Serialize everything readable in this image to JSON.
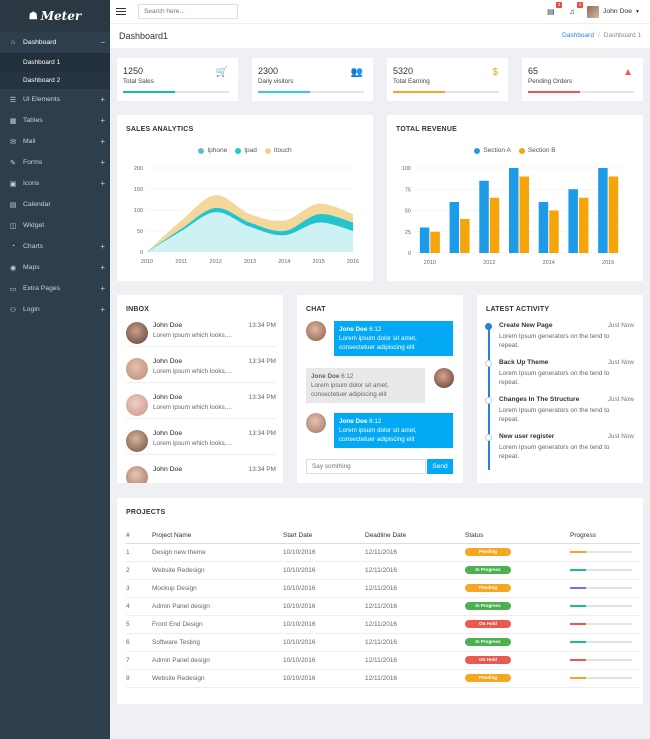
{
  "brand": {
    "name": "Meter",
    "icon": "paw-icon"
  },
  "sidebar": {
    "items": [
      {
        "label": "Dashboard",
        "icon": "home-icon",
        "toggle": "−",
        "sub": [
          "Dashboard 1",
          "Dashboard 2"
        ]
      },
      {
        "label": "UI Elements",
        "icon": "layers-icon",
        "toggle": "+"
      },
      {
        "label": "Tables",
        "icon": "table-icon",
        "toggle": "+"
      },
      {
        "label": "Mail",
        "icon": "mail-icon",
        "toggle": "+"
      },
      {
        "label": "Forms",
        "icon": "edit-icon",
        "toggle": "+"
      },
      {
        "label": "Icons",
        "icon": "grid-icon",
        "toggle": "+"
      },
      {
        "label": "Calendar",
        "icon": "calendar-icon",
        "toggle": ""
      },
      {
        "label": "Widget",
        "icon": "widget-icon",
        "toggle": ""
      },
      {
        "label": "Charts",
        "icon": "pie-chart-icon",
        "toggle": "+"
      },
      {
        "label": "Maps",
        "icon": "map-pin-icon",
        "toggle": "+"
      },
      {
        "label": "Extra Pages",
        "icon": "folder-icon",
        "toggle": "+"
      },
      {
        "label": "Login",
        "icon": "user-icon",
        "toggle": "+"
      }
    ]
  },
  "topbar": {
    "search_placeholder": "Search here...",
    "messages_count": "3",
    "alerts_count": "4",
    "user_name": "John Doe"
  },
  "header": {
    "title": "Dashboard1",
    "crumb_home": "Dashboard",
    "crumb_current": "Dashboard 1"
  },
  "stats": [
    {
      "value": "1250",
      "label": "Total Sales",
      "icon": "cart-icon",
      "color": "#1abc9c",
      "progress": 0.49
    },
    {
      "value": "2300",
      "label": "Daily visitors",
      "icon": "users-icon",
      "color": "#3bc9e7",
      "progress": 0.49
    },
    {
      "value": "5320",
      "label": "Total Earning",
      "icon": "dollar-icon",
      "color": "#f5a623",
      "progress": 0.49
    },
    {
      "value": "65",
      "label": "Pending Orders",
      "icon": "bag-icon",
      "color": "#e85a4f",
      "progress": 0.49
    }
  ],
  "sales": {
    "title": "SALES ANALYTICS",
    "legend": [
      {
        "name": "Iphone",
        "color": "#6ab8d9"
      },
      {
        "name": "Ipad",
        "color": "#1fc8d6"
      },
      {
        "name": "Itouch",
        "color": "#f5d08a"
      }
    ]
  },
  "revenue": {
    "title": "TOTAL REVENUE",
    "legend": [
      {
        "name": "Section A",
        "color": "#1e9be8"
      },
      {
        "name": "Section B",
        "color": "#f5a40a"
      }
    ]
  },
  "chart_data": [
    {
      "type": "area",
      "x": [
        2010,
        2011,
        2012,
        2013,
        2014,
        2015,
        2016
      ],
      "ylim": [
        0,
        200
      ],
      "yticks": [
        0,
        50,
        100,
        150,
        200
      ],
      "xticks": [
        "2010",
        "2011",
        "2012",
        "2013",
        "2014",
        "2015",
        "2016"
      ],
      "series": [
        {
          "name": "Iphone",
          "values": [
            0,
            50,
            95,
            60,
            40,
            70,
            50
          ]
        },
        {
          "name": "Ipad",
          "values": [
            0,
            55,
            105,
            70,
            50,
            90,
            70
          ]
        },
        {
          "name": "Itouch",
          "values": [
            0,
            75,
            135,
            90,
            75,
            115,
            90
          ]
        }
      ],
      "grid": true
    },
    {
      "type": "bar",
      "categories": [
        2010,
        2011,
        2012,
        2013,
        2014,
        2015,
        2016
      ],
      "xticks": [
        "2010",
        "2012",
        "2014",
        "2016"
      ],
      "ylim": [
        0,
        100
      ],
      "yticks": [
        0,
        25,
        50,
        75,
        100
      ],
      "series": [
        {
          "name": "Section A",
          "values": [
            30,
            60,
            85,
            100,
            60,
            75,
            100
          ]
        },
        {
          "name": "Section B",
          "values": [
            25,
            40,
            65,
            90,
            50,
            65,
            90
          ]
        }
      ],
      "grid": true
    }
  ],
  "inbox": {
    "title": "INBOX",
    "messages": [
      {
        "name": "John Doe",
        "preview": "Lorem ipsum which looks,...",
        "time": "13:34 PM"
      },
      {
        "name": "John Doe",
        "preview": "Lorem ipsum which looks,...",
        "time": "13:34 PM"
      },
      {
        "name": "John Doe",
        "preview": "Lorem ipsum which looks,...",
        "time": "13:34 PM"
      },
      {
        "name": "John Doe",
        "preview": "Lorem ipsum which looks,...",
        "time": "13:34 PM"
      },
      {
        "name": "John Doe",
        "preview": "",
        "time": "13:34 PM"
      }
    ]
  },
  "chat": {
    "title": "CHAT",
    "messages": [
      {
        "name": "Jone Doe",
        "time": "6:12",
        "text": "Lorem ipsum dolor sit amet, consectetuer adipiscing elit"
      },
      {
        "name": "Jone Doe",
        "time": "6:12",
        "text": "Lorem ipsum dolor sit amet, consectetuer adipiscing elit"
      },
      {
        "name": "Jone Doe",
        "time": "6:12",
        "text": "Lorem ipsum dolor sit amet, consectetuer adipiscing elit"
      }
    ],
    "placeholder": "Say somthing",
    "send_label": "Send"
  },
  "activity": {
    "title": "LATEST ACTIVITY",
    "items": [
      {
        "title": "Create New Page",
        "time": "Just Now",
        "desc": "Lorem Ipsum generators on the tend to repeat."
      },
      {
        "title": "Back Up Theme",
        "time": "Just Now",
        "desc": "Lorem Ipsum generators on the tend to repeat."
      },
      {
        "title": "Changes In The Structure",
        "time": "Just Now",
        "desc": "Lorem Ipsum generators on the tend to repeat."
      },
      {
        "title": "New user register",
        "time": "Just Now",
        "desc": "Lorem Ipsum generators on the tend to repeat."
      }
    ]
  },
  "projects": {
    "title": "PROJECTS",
    "columns": [
      "#",
      "Project Name",
      "Start Date",
      "Deadline Date",
      "Status",
      "Progress"
    ],
    "rows": [
      {
        "id": "1",
        "name": "Design new theme",
        "start": "10/10/2016",
        "deadline": "12/11/2016",
        "status": "Pending",
        "status_color": "#f5a623",
        "progress": 0.25,
        "progress_color": "#f5a623"
      },
      {
        "id": "2",
        "name": "Website Redesign",
        "start": "10/10/2016",
        "deadline": "12/11/2016",
        "status": "In Progress",
        "status_color": "#4caf50",
        "progress": 0.25,
        "progress_color": "#1abc9c"
      },
      {
        "id": "3",
        "name": "Mockup Design",
        "start": "10/10/2016",
        "deadline": "12/11/2016",
        "status": "Pending",
        "status_color": "#f5a623",
        "progress": 0.25,
        "progress_color": "#7c6cf0"
      },
      {
        "id": "4",
        "name": "Admin Panel design",
        "start": "10/10/2016",
        "deadline": "12/11/2016",
        "status": "In Progress",
        "status_color": "#4caf50",
        "progress": 0.25,
        "progress_color": "#1abc9c"
      },
      {
        "id": "5",
        "name": "Front End Design",
        "start": "10/10/2016",
        "deadline": "12/11/2016",
        "status": "On Hold",
        "status_color": "#e85a4f",
        "progress": 0.25,
        "progress_color": "#e85a4f"
      },
      {
        "id": "6",
        "name": "Software Testing",
        "start": "10/10/2016",
        "deadline": "12/11/2016",
        "status": "In Progress",
        "status_color": "#4caf50",
        "progress": 0.25,
        "progress_color": "#1abc9c"
      },
      {
        "id": "7",
        "name": "Admin Panel design",
        "start": "10/10/2016",
        "deadline": "12/11/2016",
        "status": "On Hold",
        "status_color": "#e85a4f",
        "progress": 0.25,
        "progress_color": "#e85a4f"
      },
      {
        "id": "8",
        "name": "Website Redesign",
        "start": "10/10/2016",
        "deadline": "12/11/2016",
        "status": "Pending",
        "status_color": "#f5a623",
        "progress": 0.25,
        "progress_color": "#f5a623"
      }
    ]
  }
}
